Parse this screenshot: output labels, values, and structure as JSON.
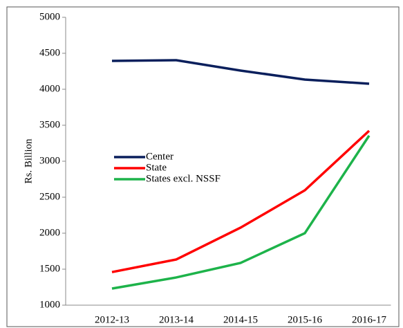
{
  "chart_data": {
    "type": "line",
    "y_label": "Rs. Billion",
    "categories": [
      "2012-13",
      "2013-14",
      "2014-15",
      "2015-16",
      "2016-17"
    ],
    "series": [
      {
        "name": "Center",
        "color": "#0a1f5c",
        "values": [
          4394,
          4404,
          4260,
          4135,
          4077
        ]
      },
      {
        "name": "State",
        "color": "#ff0000",
        "values": [
          1460,
          1635,
          2077,
          2596,
          3423
        ]
      },
      {
        "name": "States excl. NSSF",
        "color": "#1db34a",
        "values": [
          1231,
          1385,
          1587,
          2000,
          3356
        ]
      }
    ],
    "ylim": [
      1000,
      5000
    ],
    "yticks": [
      1000,
      1500,
      2000,
      2500,
      3000,
      3500,
      4000,
      4500,
      5000
    ]
  }
}
